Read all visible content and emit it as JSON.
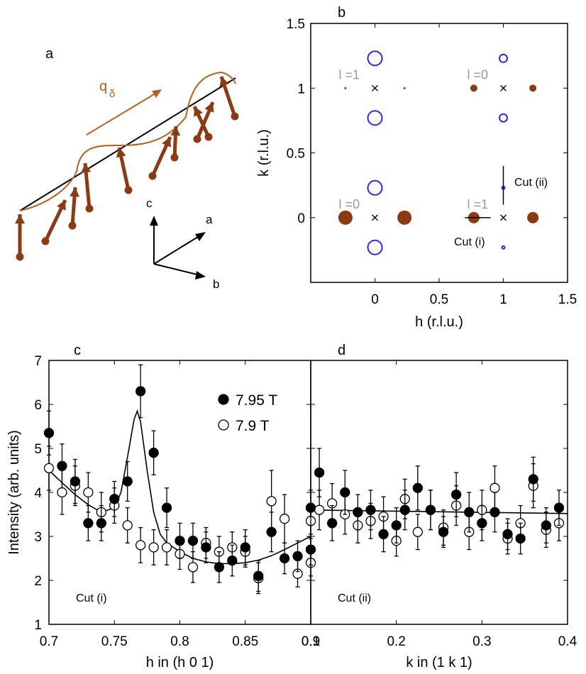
{
  "colors": {
    "moment": "#8b3a12",
    "helix": "#b5601f",
    "bragg": "#2b2bdd",
    "black": "#000000"
  },
  "panel_a": {
    "label": "a",
    "q_label": "q",
    "q_subscript": "δ",
    "axes": {
      "c": "c",
      "a": "a",
      "b": "b"
    }
  },
  "chart_data": [
    {
      "panel": "b",
      "type": "scatter",
      "xlabel": "h (r.l.u.)",
      "ylabel": "k (r.l.u.)",
      "xlim": [
        -0.5,
        1.5
      ],
      "ylim": [
        -0.5,
        1.5
      ],
      "xticks": [
        "0",
        "0.5",
        "1",
        "1.5"
      ],
      "yticks": [
        "0",
        "0.5",
        "1",
        "1.5"
      ],
      "centers": [
        [
          0,
          0
        ],
        [
          1,
          0
        ],
        [
          0,
          1
        ],
        [
          1,
          1
        ]
      ],
      "labels": [
        {
          "text": "l =1",
          "h": -0.2,
          "k": 1.07,
          "color": "#999999"
        },
        {
          "text": "l =0",
          "h": 0.8,
          "k": 1.07,
          "color": "#999999"
        },
        {
          "text": "l =0",
          "h": -0.2,
          "k": 0.07,
          "color": "#999999"
        },
        {
          "text": "l =1",
          "h": 0.8,
          "k": 0.07,
          "color": "#999999"
        }
      ],
      "series": [
        {
          "marker": "filled",
          "color": "#8b3a12",
          "points": [
            {
              "h": -0.23,
              "k": 0,
              "size": 10
            },
            {
              "h": 0.23,
              "k": 0,
              "size": 10
            },
            {
              "h": 0.77,
              "k": 0,
              "size": 8
            },
            {
              "h": 1.23,
              "k": 0,
              "size": 8
            },
            {
              "h": -0.23,
              "k": 1,
              "size": 1.5
            },
            {
              "h": 0.23,
              "k": 1,
              "size": 1.5
            },
            {
              "h": 0.77,
              "k": 1,
              "size": 5
            },
            {
              "h": 1.23,
              "k": 1,
              "size": 5
            }
          ]
        },
        {
          "marker": "open",
          "color": "#2b2bdd",
          "points": [
            {
              "h": 0,
              "k": 0.23,
              "size": 10
            },
            {
              "h": 0,
              "k": -0.23,
              "size": 10
            },
            {
              "h": 0,
              "k": 0.77,
              "size": 10
            },
            {
              "h": 0,
              "k": 1.23,
              "size": 10
            },
            {
              "h": 1,
              "k": 0.77,
              "size": 5.5
            },
            {
              "h": 1,
              "k": 1.23,
              "size": 5.5
            },
            {
              "h": 1,
              "k": 0.23,
              "size": 2
            },
            {
              "h": 1,
              "k": -0.23,
              "size": 2
            }
          ]
        }
      ],
      "cuts": [
        {
          "label": "Cut (i)",
          "from": [
            0.7,
            0
          ],
          "to": [
            0.9,
            0
          ]
        },
        {
          "label": "Cut (ii)",
          "from": [
            1,
            0.1
          ],
          "to": [
            1,
            0.4
          ]
        }
      ]
    },
    {
      "panel": "c",
      "type": "scatter",
      "xlabel": "h in (h 0 1)",
      "ylabel": "Intensity (arb. units)",
      "annotation": "Cut (i)",
      "xlim": [
        0.7,
        0.9
      ],
      "ylim": [
        1,
        7
      ],
      "xticks": [
        "0.7",
        "0.75",
        "0.8",
        "0.85",
        "0.9"
      ],
      "yticks": [
        "1",
        "2",
        "3",
        "4",
        "5",
        "6",
        "7"
      ],
      "series": [
        {
          "name": "7.95 T",
          "marker": "filled",
          "x": [
            0.7,
            0.71,
            0.72,
            0.73,
            0.74,
            0.75,
            0.76,
            0.77,
            0.78,
            0.79,
            0.8,
            0.81,
            0.82,
            0.83,
            0.84,
            0.85,
            0.86,
            0.87,
            0.88,
            0.89,
            0.9
          ],
          "y": [
            5.35,
            4.6,
            4.25,
            3.3,
            3.3,
            3.85,
            4.25,
            6.3,
            4.9,
            3.65,
            2.9,
            2.9,
            2.75,
            2.3,
            2.45,
            2.75,
            2.1,
            3.1,
            2.5,
            2.55,
            2.7
          ],
          "err": [
            0.5,
            0.5,
            0.5,
            0.4,
            0.4,
            0.4,
            0.45,
            0.6,
            0.5,
            0.45,
            0.4,
            0.4,
            0.35,
            0.35,
            0.35,
            0.4,
            0.35,
            0.45,
            0.35,
            0.35,
            0.35
          ]
        },
        {
          "name": "7.9 T",
          "marker": "open",
          "x": [
            0.7,
            0.71,
            0.72,
            0.73,
            0.74,
            0.75,
            0.76,
            0.77,
            0.78,
            0.79,
            0.8,
            0.81,
            0.82,
            0.83,
            0.84,
            0.85,
            0.86,
            0.87,
            0.88,
            0.89,
            0.9
          ],
          "y": [
            4.55,
            4.0,
            4.15,
            4.0,
            3.55,
            3.7,
            3.25,
            2.8,
            2.75,
            2.75,
            2.6,
            2.3,
            2.85,
            2.65,
            2.75,
            2.65,
            2.05,
            3.8,
            3.4,
            2.15,
            2.4
          ],
          "err": [
            0.5,
            0.5,
            0.45,
            0.45,
            0.45,
            0.4,
            0.4,
            0.4,
            0.4,
            0.4,
            0.35,
            0.35,
            0.35,
            0.35,
            0.35,
            0.35,
            0.35,
            0.7,
            0.55,
            0.3,
            0.3
          ]
        }
      ],
      "fit": {
        "x": [
          0.7,
          0.71,
          0.72,
          0.73,
          0.74,
          0.75,
          0.755,
          0.76,
          0.765,
          0.7675,
          0.77,
          0.775,
          0.78,
          0.785,
          0.79,
          0.8,
          0.81,
          0.82,
          0.83,
          0.84,
          0.85,
          0.86,
          0.87,
          0.88,
          0.89,
          0.9
        ],
        "y": [
          4.5,
          4.22,
          3.95,
          3.72,
          3.55,
          3.65,
          4.0,
          4.8,
          5.65,
          5.85,
          5.6,
          4.5,
          3.55,
          3.05,
          2.85,
          2.65,
          2.5,
          2.42,
          2.38,
          2.38,
          2.4,
          2.46,
          2.56,
          2.7,
          2.85,
          3.0
        ]
      }
    },
    {
      "panel": "d",
      "type": "scatter",
      "xlabel": "k in (1 k 1)",
      "annotation": "Cut (ii)",
      "xlim": [
        0.1,
        0.4
      ],
      "ylim": [
        1,
        7
      ],
      "xticks": [
        "0.1",
        "0.2",
        "0.3",
        "0.4"
      ],
      "series": [
        {
          "name": "7.95 T",
          "marker": "filled",
          "x": [
            0.1,
            0.11,
            0.125,
            0.14,
            0.155,
            0.17,
            0.185,
            0.2,
            0.21,
            0.225,
            0.24,
            0.255,
            0.27,
            0.285,
            0.3,
            0.315,
            0.33,
            0.345,
            0.36,
            0.375,
            0.39
          ],
          "y": [
            3.65,
            4.45,
            3.3,
            4.0,
            3.55,
            3.6,
            3.05,
            3.25,
            3.6,
            4.1,
            3.6,
            3.1,
            3.95,
            3.55,
            3.3,
            3.55,
            3.05,
            2.95,
            4.3,
            3.25,
            3.65
          ],
          "err": [
            0.4,
            0.55,
            0.4,
            0.5,
            0.4,
            0.45,
            0.4,
            0.4,
            0.45,
            0.5,
            0.45,
            0.35,
            0.5,
            0.45,
            0.4,
            0.45,
            0.35,
            0.35,
            0.5,
            0.4,
            0.4
          ]
        },
        {
          "name": "7.9 T",
          "marker": "open",
          "x": [
            0.1,
            0.11,
            0.125,
            0.14,
            0.155,
            0.17,
            0.185,
            0.2,
            0.21,
            0.225,
            0.24,
            0.255,
            0.27,
            0.285,
            0.3,
            0.315,
            0.33,
            0.345,
            0.36,
            0.375,
            0.39
          ],
          "y": [
            3.35,
            3.6,
            3.75,
            3.5,
            3.25,
            3.35,
            3.45,
            2.9,
            3.85,
            3.1,
            3.6,
            3.2,
            3.7,
            3.1,
            3.6,
            4.1,
            2.95,
            3.3,
            4.15,
            3.15,
            3.3
          ],
          "err": [
            0.4,
            0.45,
            0.45,
            0.45,
            0.4,
            0.4,
            0.45,
            0.35,
            0.45,
            0.4,
            0.45,
            0.4,
            0.45,
            0.4,
            0.45,
            0.5,
            0.35,
            0.4,
            0.5,
            0.4,
            0.4
          ]
        }
      ],
      "fit": {
        "x": [
          0.1,
          0.4
        ],
        "y": [
          3.6,
          3.52
        ]
      }
    }
  ]
}
